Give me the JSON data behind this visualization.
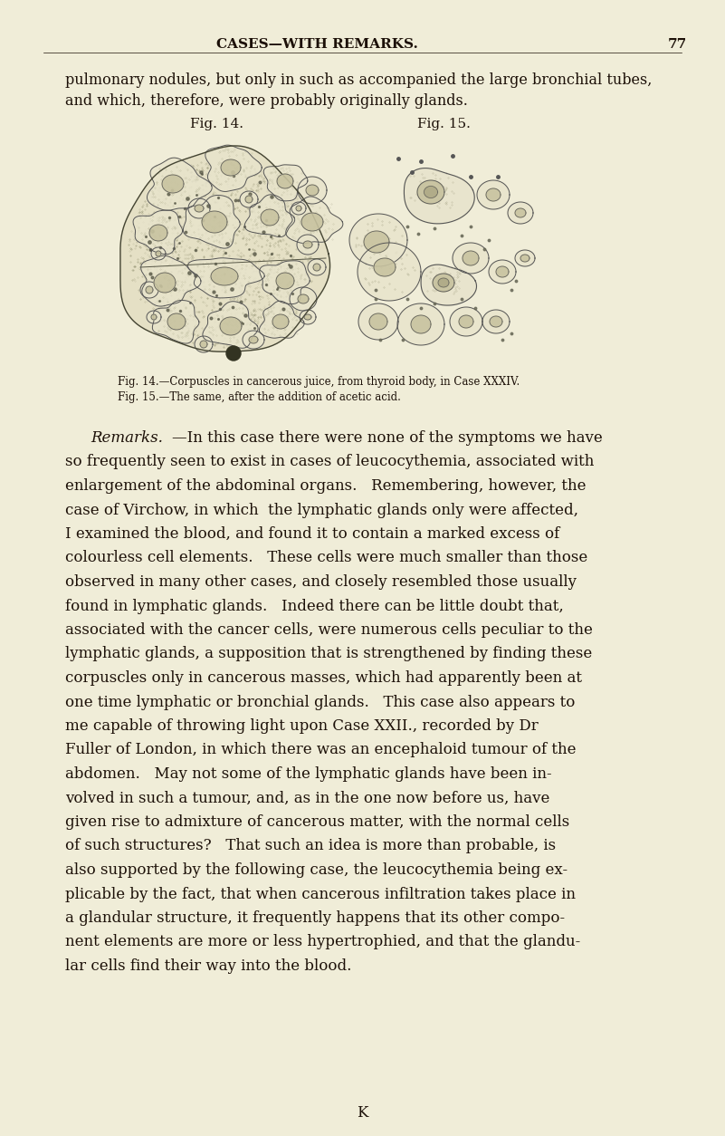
{
  "background_color": "#f0edd8",
  "header_text": "CASES—WITH REMARKS.",
  "page_number": "77",
  "top_text_line1": "pulmonary nodules, but only in such as accompanied the large bronchial tubes,",
  "top_text_line2": "and which, therefore, were probably originally glands.",
  "fig14_label": "Fig. 14.",
  "fig15_label": "Fig. 15.",
  "caption_line1": "Fig. 14.—Corpuscles in cancerous juice, from thyroid body, in Case XXXIV.",
  "caption_line2": "Fig. 15.—The same, after the addition of acetic acid.",
  "remarks_italic": "Remarks.",
  "remarks_dash": "—In this case there were none of the symptoms we have",
  "body_lines": [
    "so frequently seen to exist in cases of leucocythemia, associated with",
    "enlargement of the abdominal organs.   Remembering, however, the",
    "case of Virchow, in which  the lymphatic glands only were affected,",
    "I examined the blood, and found it to contain a marked excess of",
    "colourless cell elements.   These cells were much smaller than those",
    "observed in many other cases, and closely resembled those usually",
    "found in lymphatic glands.   Indeed there can be little doubt that,",
    "associated with the cancer cells, were numerous cells peculiar to the",
    "lymphatic glands, a supposition that is strengthened by finding these",
    "corpuscles only in cancerous masses, which had apparently been at",
    "one time lymphatic or bronchial glands.   This case also appears to",
    "me capable of throwing light upon Case XXII., recorded by Dr",
    "Fuller of London, in which there was an encephaloid tumour of the",
    "abdomen.   May not some of the lymphatic glands have been in-",
    "volved in such a tumour, and, as in the one now before us, have",
    "given rise to admixture of cancerous matter, with the normal cells",
    "of such structures?   That such an idea is more than probable, is",
    "also supported by the following case, the leucocythemia being ex-",
    "plicable by the fact, that when cancerous infiltration takes place in",
    "a glandular structure, it frequently happens that its other compo-",
    "nent elements are more or less hypertrophied, and that the glandu-",
    "lar cells find their way into the blood."
  ],
  "footer_letter": "K",
  "text_color": "#1c1008",
  "cell_outline": "#555555",
  "cell_fill": "#e8e4cc",
  "nucleus_fill": "#c8c3a0"
}
